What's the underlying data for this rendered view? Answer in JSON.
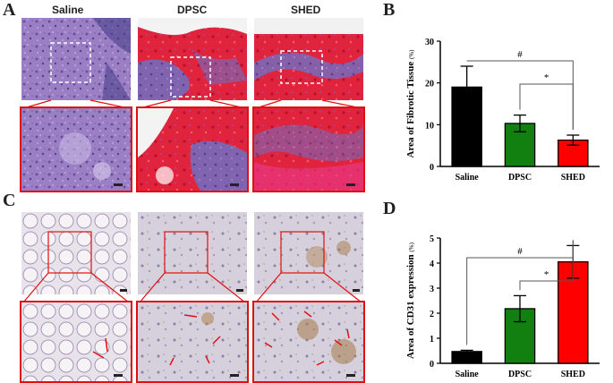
{
  "panels": {
    "a": {
      "letter": "A",
      "labels": [
        "Saline",
        "DPSC",
        "SHED"
      ]
    },
    "b": {
      "letter": "B"
    },
    "c": {
      "letter": "C"
    },
    "d": {
      "letter": "D"
    }
  },
  "colors": {
    "saline": "#000000",
    "dpsc": "#118011",
    "shed": "#ff0000",
    "zoom_box": "#e01010"
  },
  "chart_data": [
    {
      "id": "B",
      "type": "bar",
      "categories": [
        "Saline",
        "DPSC",
        "SHED"
      ],
      "values": [
        19,
        10.3,
        6.3
      ],
      "errors": [
        5,
        2,
        1.2
      ],
      "ylabel": "Area of Fibrotic Tissue",
      "yunit": "(%)",
      "ylim": [
        0,
        30
      ],
      "yticks": [
        0,
        10,
        20,
        30
      ],
      "significance": [
        {
          "from": "Saline",
          "to": "SHED",
          "label": "#"
        },
        {
          "from": "DPSC",
          "to": "SHED",
          "label": "*"
        }
      ]
    },
    {
      "id": "D",
      "type": "bar",
      "categories": [
        "Saline",
        "DPSC",
        "SHED"
      ],
      "values": [
        0.47,
        2.18,
        4.05
      ],
      "errors": [
        0.05,
        0.52,
        0.65
      ],
      "ylabel": "Area of CD31 expression",
      "yunit": "(%)",
      "ylim": [
        0,
        5
      ],
      "yticks": [
        0,
        1,
        2,
        3,
        4,
        5
      ],
      "significance": [
        {
          "from": "Saline",
          "to": "SHED",
          "label": "#"
        },
        {
          "from": "DPSC",
          "to": "SHED",
          "label": "*"
        }
      ]
    }
  ]
}
